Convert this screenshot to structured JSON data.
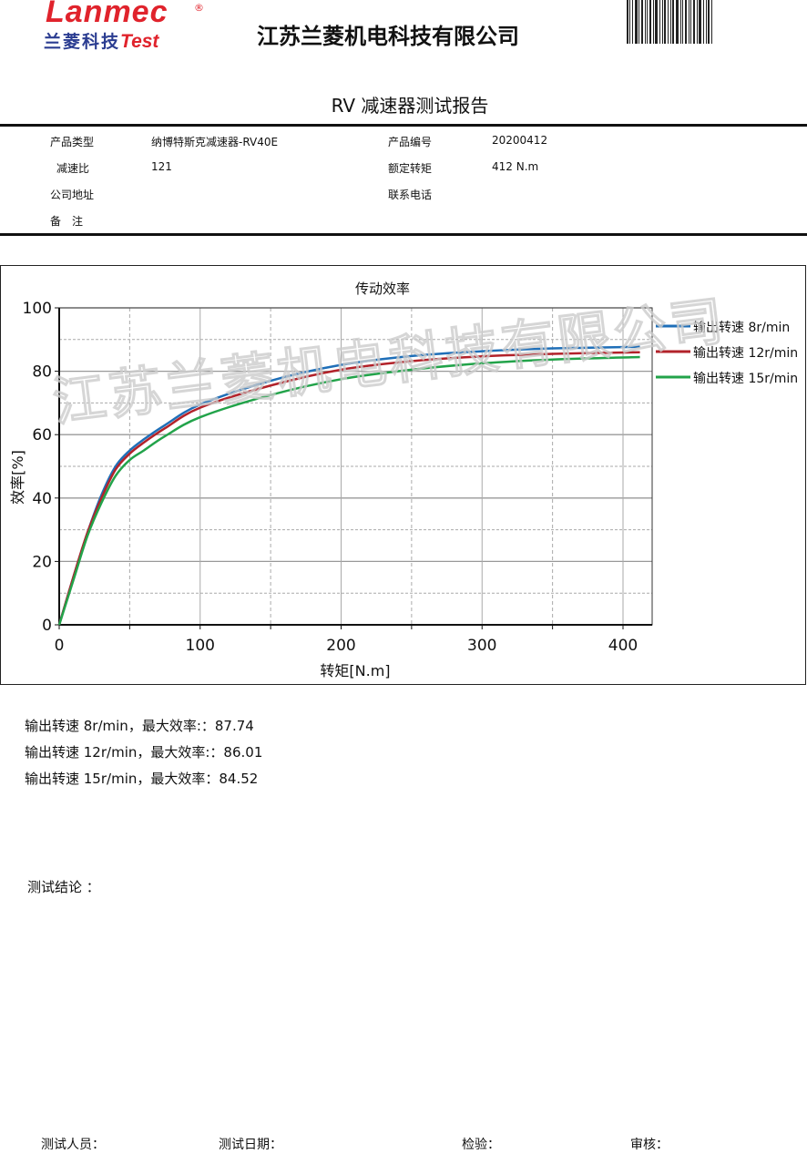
{
  "header": {
    "logo_en": "Lanmec",
    "logo_reg": "®",
    "logo_cn": "兰菱科技",
    "logo_test": "Test",
    "company": "江苏兰菱机电科技有限公司",
    "title": "RV 减速器测试报告"
  },
  "info": {
    "product_type_label": "产品类型",
    "product_type": "纳博特斯克减速器-RV40E",
    "product_no_label": "产品编号",
    "product_no": "20200412",
    "ratio_label": "减速比",
    "ratio": "121",
    "rated_torque_label": "额定转矩",
    "rated_torque": "412 N.m",
    "address_label": "公司地址",
    "address": "",
    "phone_label": "联系电话",
    "phone": "",
    "remark_label": "备　注",
    "remark": ""
  },
  "watermark": "江苏兰菱机电科技有限公司",
  "chart_data": {
    "type": "line",
    "title": "传动效率",
    "xlabel": "转矩[N.m]",
    "ylabel": "效率[%]",
    "xlim": [
      0,
      420
    ],
    "ylim": [
      0,
      100
    ],
    "xticks": [
      "0",
      "100",
      "200",
      "300",
      "400"
    ],
    "yticks": [
      "0",
      "20",
      "40",
      "60",
      "80",
      "100"
    ],
    "grid": true,
    "legend": "right",
    "x": [
      0,
      10,
      20,
      30,
      40,
      50,
      60,
      75,
      100,
      150,
      200,
      250,
      300,
      350,
      412
    ],
    "series": [
      {
        "name": "输出转速 8r/min",
        "color": "#1f6fb8",
        "values": [
          0,
          15,
          29,
          41,
          50,
          55,
          58.5,
          63,
          69.5,
          77,
          82,
          84.8,
          86.3,
          87.2,
          87.7
        ]
      },
      {
        "name": "输出转速 12r/min",
        "color": "#b2222a",
        "values": [
          0,
          15,
          29,
          40,
          49,
          54,
          57.5,
          62,
          68.5,
          75.5,
          80.5,
          83.2,
          84.7,
          85.5,
          86
        ]
      },
      {
        "name": "输出转速 15r/min",
        "color": "#22a34a",
        "values": [
          0,
          14,
          28,
          38.5,
          47,
          52,
          55,
          59.5,
          65.5,
          72.5,
          77.5,
          80.5,
          82.5,
          83.7,
          84.5
        ]
      }
    ]
  },
  "results": [
    "输出转速 8r/min，最大效率:：87.74",
    "输出转速 12r/min，最大效率:：86.01",
    "输出转速 15r/min，最大效率：84.52"
  ],
  "conclusion_label": "测试结论 ：",
  "signatures": {
    "tester": "测试人员：",
    "date": "测试日期：",
    "inspect": "检验：",
    "review": "审核："
  }
}
